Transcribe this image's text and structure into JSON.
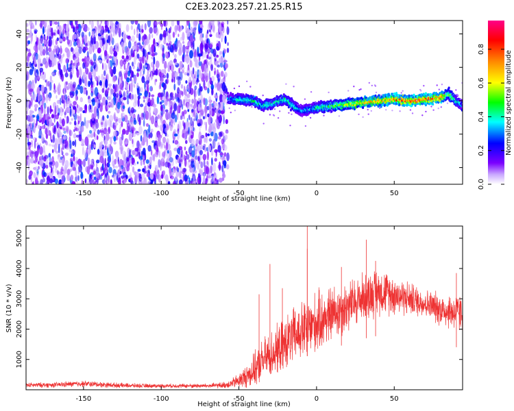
{
  "title": "C2E3.2023.257.21.25.R15",
  "chart_data": [
    {
      "type": "heatmap",
      "name": "spectrogram",
      "xlabel": "Height of straight line (km)",
      "ylabel": "Frequency (Hz)",
      "xlim": [
        -187,
        94
      ],
      "ylim": [
        -50,
        48
      ],
      "xticks": [
        -150,
        -100,
        -50,
        0,
        50
      ],
      "yticks": [
        -40,
        -20,
        0,
        20,
        40
      ],
      "colorbar": {
        "label": "Normalized spectral amplitude",
        "range": [
          0,
          0.97
        ],
        "ticks": [
          0.0,
          0.2,
          0.4,
          0.6,
          0.8
        ],
        "tick_labels": [
          "0.0",
          "0.2",
          "0.4",
          "0.6",
          "0.8"
        ],
        "colormap": [
          "#ffffff",
          "#7b00ff",
          "#0000ff",
          "#00ffff",
          "#00ff00",
          "#ffff00",
          "#ff8800",
          "#ff0000",
          "#ff0088"
        ]
      },
      "noise_region": {
        "x": [
          -187,
          -57
        ],
        "amplitude": [
          0.05,
          0.3
        ]
      },
      "signal_track": {
        "x": [
          -57,
          -50,
          -40,
          -35,
          -30,
          -25,
          -20,
          -15,
          -10,
          -5,
          0,
          10,
          20,
          30,
          40,
          50,
          60,
          70,
          80,
          85,
          90,
          94
        ],
        "frequency": [
          1,
          1,
          0,
          -3,
          -2,
          0,
          1,
          -3,
          -6,
          -5,
          -4,
          -3,
          -2,
          -1,
          0,
          1,
          0,
          1,
          2,
          4,
          0,
          -3
        ],
        "amplitude": [
          0.35,
          0.45,
          0.5,
          0.45,
          0.5,
          0.45,
          0.5,
          0.45,
          0.35,
          0.4,
          0.45,
          0.55,
          0.65,
          0.75,
          0.8,
          0.85,
          0.85,
          0.85,
          0.85,
          0.6,
          0.45,
          0.35
        ]
      },
      "grid": false
    },
    {
      "type": "line",
      "name": "snr",
      "xlabel": "Height of straight line (km)",
      "ylabel": "SNR (10 * v/v)",
      "xlim": [
        -187,
        94
      ],
      "ylim": [
        0,
        5400
      ],
      "xticks": [
        -150,
        -100,
        -50,
        0,
        50
      ],
      "yticks": [
        1000,
        2000,
        3000,
        4000,
        5000
      ],
      "color": "#ee3333",
      "grid": false,
      "envelope": {
        "x": [
          -187,
          -170,
          -150,
          -130,
          -110,
          -90,
          -70,
          -60,
          -55,
          -50,
          -45,
          -40,
          -35,
          -30,
          -25,
          -20,
          -15,
          -10,
          -5,
          0,
          5,
          10,
          20,
          30,
          40,
          50,
          60,
          70,
          80,
          90,
          94
        ],
        "mean": [
          150,
          160,
          200,
          150,
          130,
          130,
          130,
          150,
          200,
          300,
          450,
          650,
          950,
          1150,
          1300,
          1550,
          1750,
          1900,
          2050,
          2200,
          2350,
          2500,
          2750,
          3050,
          3250,
          3150,
          3000,
          2850,
          2650,
          2550,
          2500
        ],
        "spread": [
          100,
          100,
          120,
          100,
          80,
          80,
          90,
          120,
          180,
          300,
          450,
          650,
          800,
          900,
          950,
          1000,
          1100,
          1150,
          1200,
          1200,
          1150,
          1100,
          1000,
          950,
          900,
          800,
          650,
          550,
          650,
          750,
          800
        ]
      },
      "peaks": [
        {
          "x": -37,
          "y": 3150
        },
        {
          "x": -30,
          "y": 4150
        },
        {
          "x": -22,
          "y": 3350
        },
        {
          "x": -6,
          "y": 4650
        },
        {
          "x": -6,
          "y": 5400
        },
        {
          "x": 16,
          "y": 4050
        },
        {
          "x": 32,
          "y": 4950
        },
        {
          "x": 38,
          "y": 4250
        },
        {
          "x": 90,
          "y": 3850
        }
      ]
    }
  ]
}
